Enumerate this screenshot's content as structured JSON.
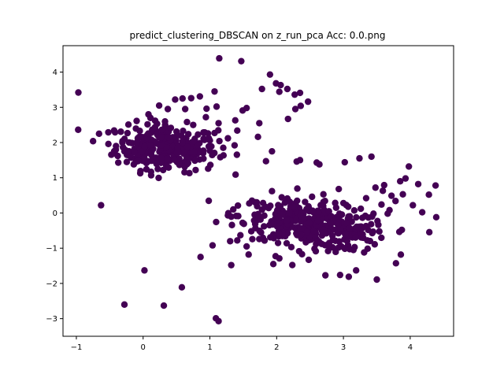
{
  "chart_data": {
    "type": "scatter",
    "title": "predict_clustering_DBSCAN on z_run_pca  Acc: 0.0.png",
    "xlabel": "",
    "ylabel": "",
    "xlim": [
      -1.2,
      4.65
    ],
    "ylim": [
      -3.5,
      4.75
    ],
    "xticks": [
      -1,
      0,
      1,
      2,
      3,
      4
    ],
    "yticks": [
      -3,
      -2,
      -1,
      0,
      1,
      2,
      3,
      4
    ],
    "tick_labels_x": [
      "−1",
      "0",
      "1",
      "2",
      "3",
      "4"
    ],
    "tick_labels_y": [
      "−3",
      "−2",
      "−1",
      "0",
      "1",
      "2",
      "3",
      "4"
    ],
    "grid": false,
    "legend": "none",
    "point_color": "#440154",
    "series": [
      {
        "values": [
          [
            -0.97,
            3.42
          ],
          [
            -0.66,
            2.25
          ],
          [
            -0.63,
            0.22
          ],
          [
            -0.28,
            -2.6
          ],
          [
            0.02,
            -1.63
          ],
          [
            0.31,
            -2.63
          ],
          [
            0.58,
            -2.11
          ],
          [
            0.86,
            -1.25
          ],
          [
            1.04,
            -0.92
          ],
          [
            1.09,
            -2.99
          ],
          [
            1.13,
            -3.07
          ],
          [
            1.32,
            -1.48
          ],
          [
            1.14,
            4.39
          ],
          [
            1.47,
            4.31
          ],
          [
            1.07,
            3.45
          ],
          [
            1.1,
            3.02
          ],
          [
            0.95,
            2.96
          ],
          [
            0.59,
            3.25
          ],
          [
            1.49,
            2.91
          ],
          [
            1.55,
            2.98
          ],
          [
            1.38,
            2.63
          ],
          [
            1.72,
            2.16
          ],
          [
            1.74,
            2.55
          ],
          [
            1.84,
            1.47
          ],
          [
            1.93,
            1.75
          ],
          [
            1.78,
            3.52
          ],
          [
            1.9,
            3.93
          ],
          [
            1.99,
            3.68
          ],
          [
            2.06,
            3.63
          ],
          [
            2.16,
            3.52
          ],
          [
            2.04,
            3.44
          ],
          [
            2.27,
            3.36
          ],
          [
            2.35,
            3.41
          ],
          [
            2.28,
            2.95
          ],
          [
            2.36,
            3.04
          ],
          [
            2.47,
            3.16
          ],
          [
            2.17,
            2.67
          ],
          [
            2.3,
            1.46
          ],
          [
            2.35,
            1.5
          ],
          [
            2.6,
            1.43
          ],
          [
            2.64,
            1.38
          ],
          [
            3.02,
            1.44
          ],
          [
            3.24,
            1.55
          ],
          [
            3.42,
            1.6
          ],
          [
            3.98,
            1.32
          ],
          [
            4.12,
            0.82
          ],
          [
            4.28,
            0.52
          ],
          [
            4.38,
            0.78
          ],
          [
            4.39,
            -0.12
          ],
          [
            4.18,
            0.02
          ],
          [
            4.04,
            0.22
          ],
          [
            3.89,
            0.53
          ],
          [
            3.78,
            0.34
          ],
          [
            3.59,
            0.63
          ],
          [
            3.69,
            0.08
          ],
          [
            3.51,
            -0.23
          ],
          [
            3.37,
            -0.48
          ],
          [
            3.25,
            -0.61
          ],
          [
            3.15,
            -1.05
          ],
          [
            3.31,
            -1.12
          ],
          [
            3.19,
            -1.63
          ],
          [
            3.5,
            -1.89
          ],
          [
            3.08,
            -1.81
          ],
          [
            2.95,
            -1.76
          ],
          [
            2.73,
            -1.77
          ],
          [
            2.38,
            -1.17
          ],
          [
            2.04,
            -1.29
          ],
          [
            1.95,
            -1.45
          ],
          [
            1.58,
            -1.18
          ],
          [
            1.41,
            -0.78
          ],
          [
            1.27,
            -0.07
          ],
          [
            1.35,
            0.1
          ],
          [
            1.42,
            0.21
          ],
          [
            1.63,
            0.35
          ],
          [
            1.93,
            0.62
          ],
          [
            2.16,
            0.41
          ],
          [
            2.53,
            0.46
          ],
          [
            2.7,
            0.53
          ],
          [
            2.93,
            0.68
          ],
          [
            3.34,
            0.42
          ],
          [
            3.48,
            0.72
          ],
          [
            3.61,
            0.79
          ],
          [
            3.85,
            0.9
          ],
          [
            3.93,
            0.98
          ],
          [
            3.72,
            0.49
          ],
          [
            0.75,
            2.5
          ],
          [
            0.82,
            1.81
          ],
          [
            0.9,
            1.7
          ],
          [
            1.0,
            2.06
          ],
          [
            1.07,
            2.27
          ],
          [
            1.2,
            1.85
          ],
          [
            1.27,
            2.12
          ],
          [
            1.37,
            1.92
          ],
          [
            1.41,
            2.34
          ],
          [
            1.13,
            2.55
          ],
          [
            0.94,
            2.72
          ],
          [
            0.63,
            2.95
          ],
          [
            0.48,
            3.22
          ],
          [
            0.72,
            3.26
          ],
          [
            0.85,
            3.31
          ],
          [
            0.37,
            2.95
          ],
          [
            0.24,
            3.05
          ],
          [
            0.08,
            2.8
          ],
          [
            -0.22,
            2.51
          ],
          [
            -0.42,
            2.29
          ],
          [
            -0.52,
            1.96
          ],
          [
            -0.38,
            1.62
          ],
          [
            -0.14,
            1.38
          ],
          [
            0.05,
            1.24
          ],
          [
            0.12,
            1.07
          ],
          [
            0.3,
            1.22
          ],
          [
            0.58,
            1.42
          ],
          [
            0.74,
            1.61
          ],
          [
            0.65,
            2.02
          ],
          [
            0.5,
            2.31
          ],
          [
            0.33,
            2.5
          ],
          [
            0.18,
            2.62
          ],
          [
            -0.05,
            2.33
          ],
          [
            -0.21,
            2.0
          ],
          [
            -0.28,
            1.75
          ],
          [
            -0.11,
            1.55
          ],
          [
            0.02,
            1.68
          ],
          [
            0.15,
            1.82
          ],
          [
            0.28,
            1.95
          ],
          [
            0.41,
            1.72
          ],
          [
            0.55,
            1.84
          ],
          [
            0.36,
            1.58
          ],
          [
            0.21,
            1.43
          ],
          [
            0.08,
            1.96
          ],
          [
            -0.08,
            2.12
          ],
          [
            0.61,
            1.68
          ],
          [
            0.69,
            1.86
          ],
          [
            0.46,
            2.06
          ],
          [
            0.25,
            2.14
          ],
          [
            0.12,
            2.28
          ],
          [
            2.68,
            -0.64
          ],
          [
            2.88,
            -0.79
          ],
          [
            3.04,
            -0.5
          ],
          [
            2.83,
            -0.28
          ],
          [
            2.58,
            -0.41
          ],
          [
            2.42,
            -0.16
          ],
          [
            2.21,
            -0.35
          ],
          [
            2.0,
            -0.1
          ],
          [
            1.81,
            -0.38
          ],
          [
            1.62,
            -0.52
          ],
          [
            1.49,
            -0.28
          ],
          [
            1.67,
            -0.05
          ],
          [
            1.88,
            0.14
          ],
          [
            2.09,
            0.06
          ],
          [
            2.29,
            0.21
          ],
          [
            2.49,
            0.05
          ],
          [
            2.71,
            -0.12
          ],
          [
            2.94,
            -0.02
          ],
          [
            3.12,
            -0.24
          ],
          [
            2.59,
            -0.88
          ],
          [
            2.37,
            -0.72
          ],
          [
            2.15,
            -0.86
          ],
          [
            1.95,
            -0.61
          ],
          [
            1.74,
            -0.74
          ],
          [
            1.55,
            -0.95
          ],
          [
            2.77,
            -1.08
          ],
          [
            2.97,
            -0.95
          ],
          [
            2.48,
            -1.33
          ],
          [
            2.22,
            -0.97
          ],
          [
            2.66,
            0.22
          ],
          [
            3.0,
            0.28
          ],
          [
            3.26,
            0.12
          ],
          [
            3.45,
            -0.02
          ],
          [
            3.57,
            0.24
          ],
          [
            2.32,
            -0.48
          ],
          [
            2.12,
            -0.55
          ],
          [
            1.92,
            -0.24
          ],
          [
            1.71,
            -0.2
          ],
          [
            2.52,
            -0.58
          ],
          [
            2.79,
            -0.49
          ]
        ]
      }
    ],
    "dense_clusters": [
      {
        "cx": 0.35,
        "cy": 1.85,
        "sx": 0.38,
        "sy": 0.33,
        "n": 260
      },
      {
        "cx": 2.55,
        "cy": -0.35,
        "sx": 0.55,
        "sy": 0.3,
        "n": 320
      }
    ]
  }
}
